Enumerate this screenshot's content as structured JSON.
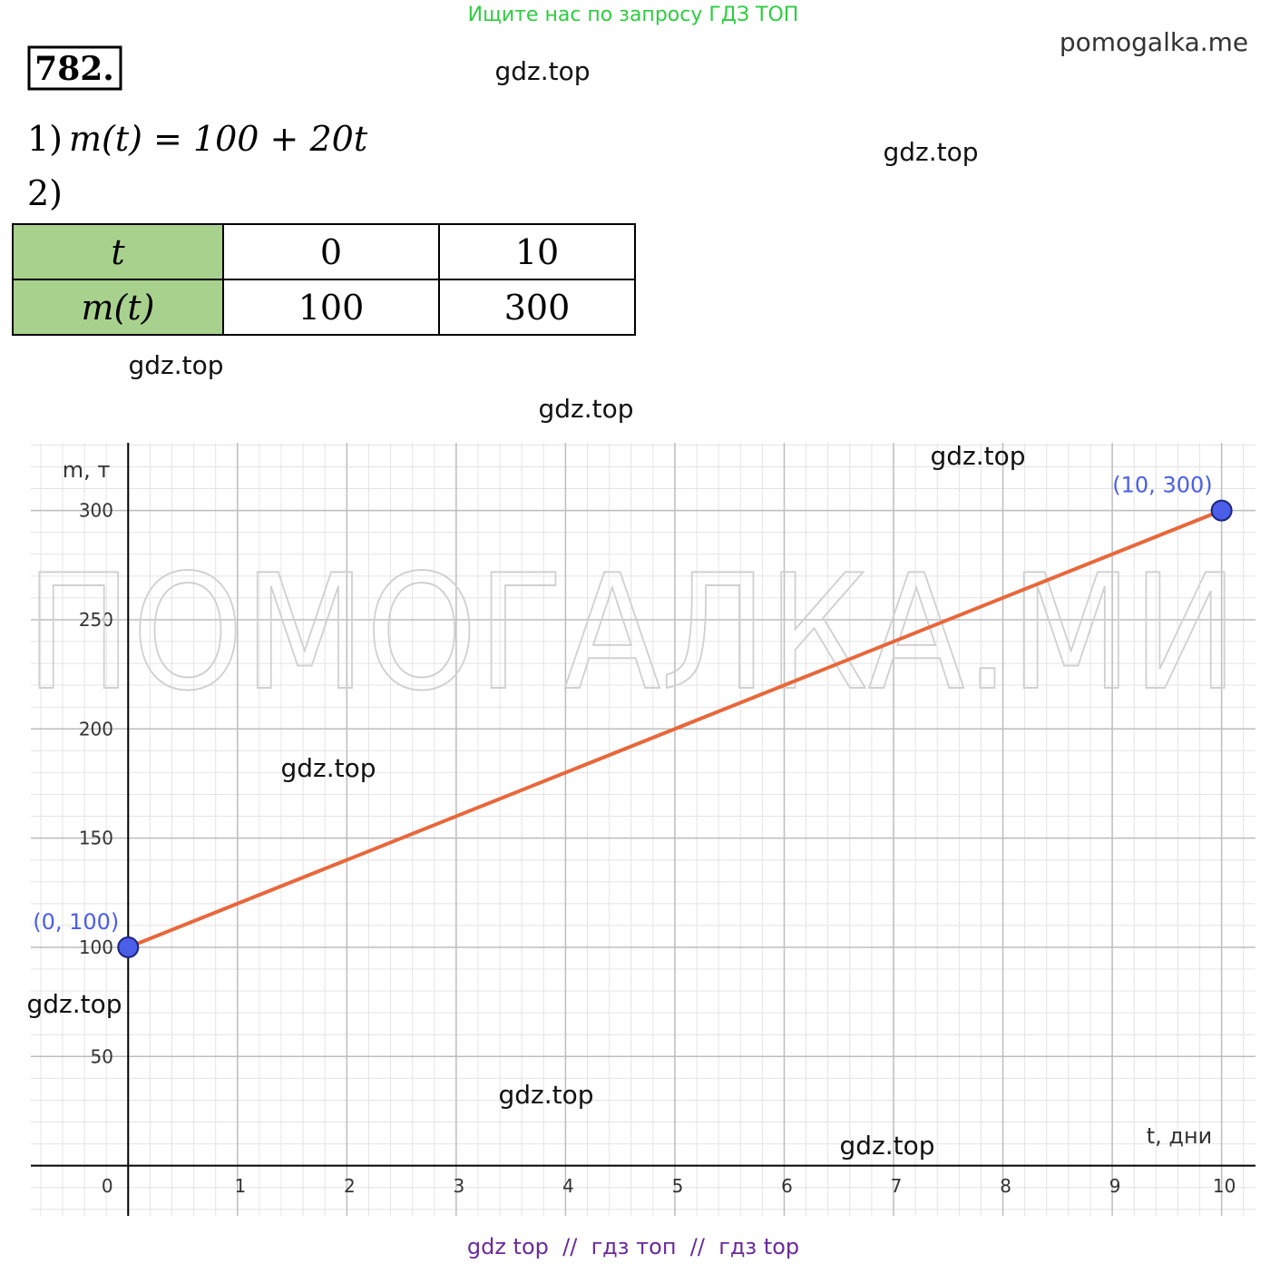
{
  "header": {
    "banner": "Ищите нас по запросу ГДЗ ТОП",
    "site": "pomogalka.me",
    "number": "782."
  },
  "formula": {
    "label": "1)",
    "expression": "m(t) = 100 + 20t"
  },
  "part2": "2)",
  "table": {
    "rows": [
      [
        "t",
        "0",
        "10"
      ],
      [
        "m(t)",
        "100",
        "300"
      ]
    ]
  },
  "watermarks": [
    "gdz.top",
    "gdz.top",
    "gdz.top",
    "gdz.top",
    "gdz.top",
    "gdz.top",
    "gdz.top",
    "gdz.top",
    "gdz.top"
  ],
  "big_watermark": "ПОМОГАЛКА.МИ",
  "footer": "gdz top  //  гдз топ  //  гдз top",
  "chart_data": {
    "type": "line",
    "x_label": "t, дни",
    "y_label": "m, т",
    "x": [
      0,
      10
    ],
    "series": [
      {
        "color": "#e8673a",
        "values": [
          100,
          300
        ],
        "value_labels": [
          "(0, 100)",
          "(10, 300)"
        ],
        "point_color": "#4a5ee8"
      }
    ],
    "xlim": [
      -0.89,
      10.31
    ],
    "ylim": [
      -23,
      331
    ],
    "xticks": [
      0,
      1,
      2,
      3,
      4,
      5,
      6,
      7,
      8,
      9,
      10
    ],
    "yticks": [
      50,
      100,
      150,
      200,
      250,
      300
    ],
    "grid": true,
    "minor_grid": {
      "x": 0.2,
      "y": 10
    }
  }
}
